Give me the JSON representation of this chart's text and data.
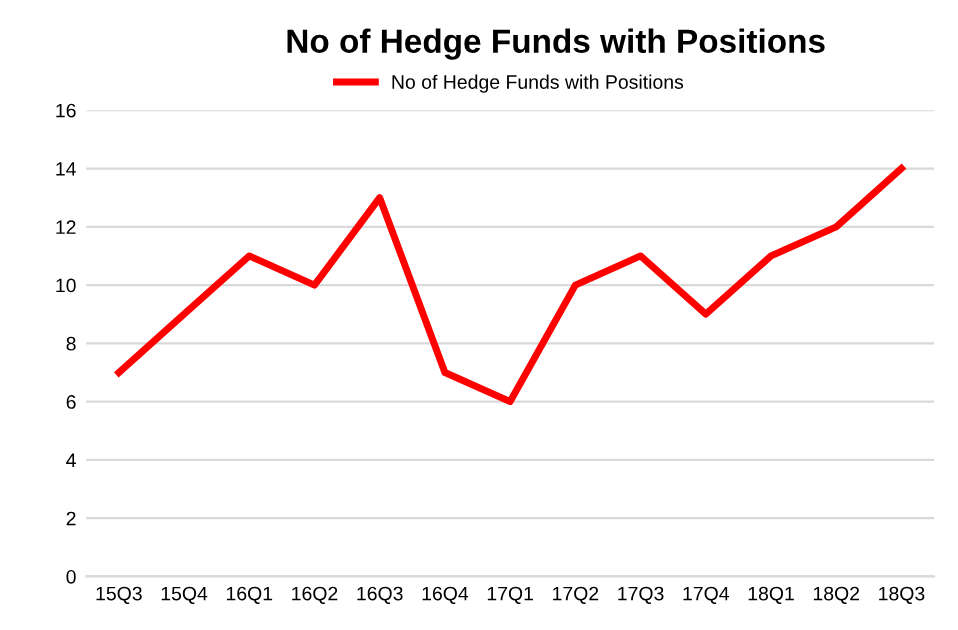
{
  "chart_data": {
    "type": "line",
    "title": "No of Hedge Funds with Positions",
    "categories": [
      "15Q3",
      "15Q4",
      "16Q1",
      "16Q2",
      "16Q3",
      "16Q4",
      "17Q1",
      "17Q2",
      "17Q3",
      "17Q4",
      "18Q1",
      "18Q2",
      "18Q3"
    ],
    "series": [
      {
        "name": "No of Hedge Funds with Positions",
        "color": "#ff0000",
        "values": [
          7,
          9,
          11,
          10,
          13,
          7,
          6,
          10,
          11,
          9,
          11,
          12,
          14
        ]
      }
    ],
    "ylim": [
      0,
      16
    ],
    "yticks": [
      0,
      2,
      4,
      6,
      8,
      10,
      12,
      14,
      16
    ],
    "grid": "y",
    "legend": "top",
    "marker": "none",
    "line_style": "solid"
  }
}
